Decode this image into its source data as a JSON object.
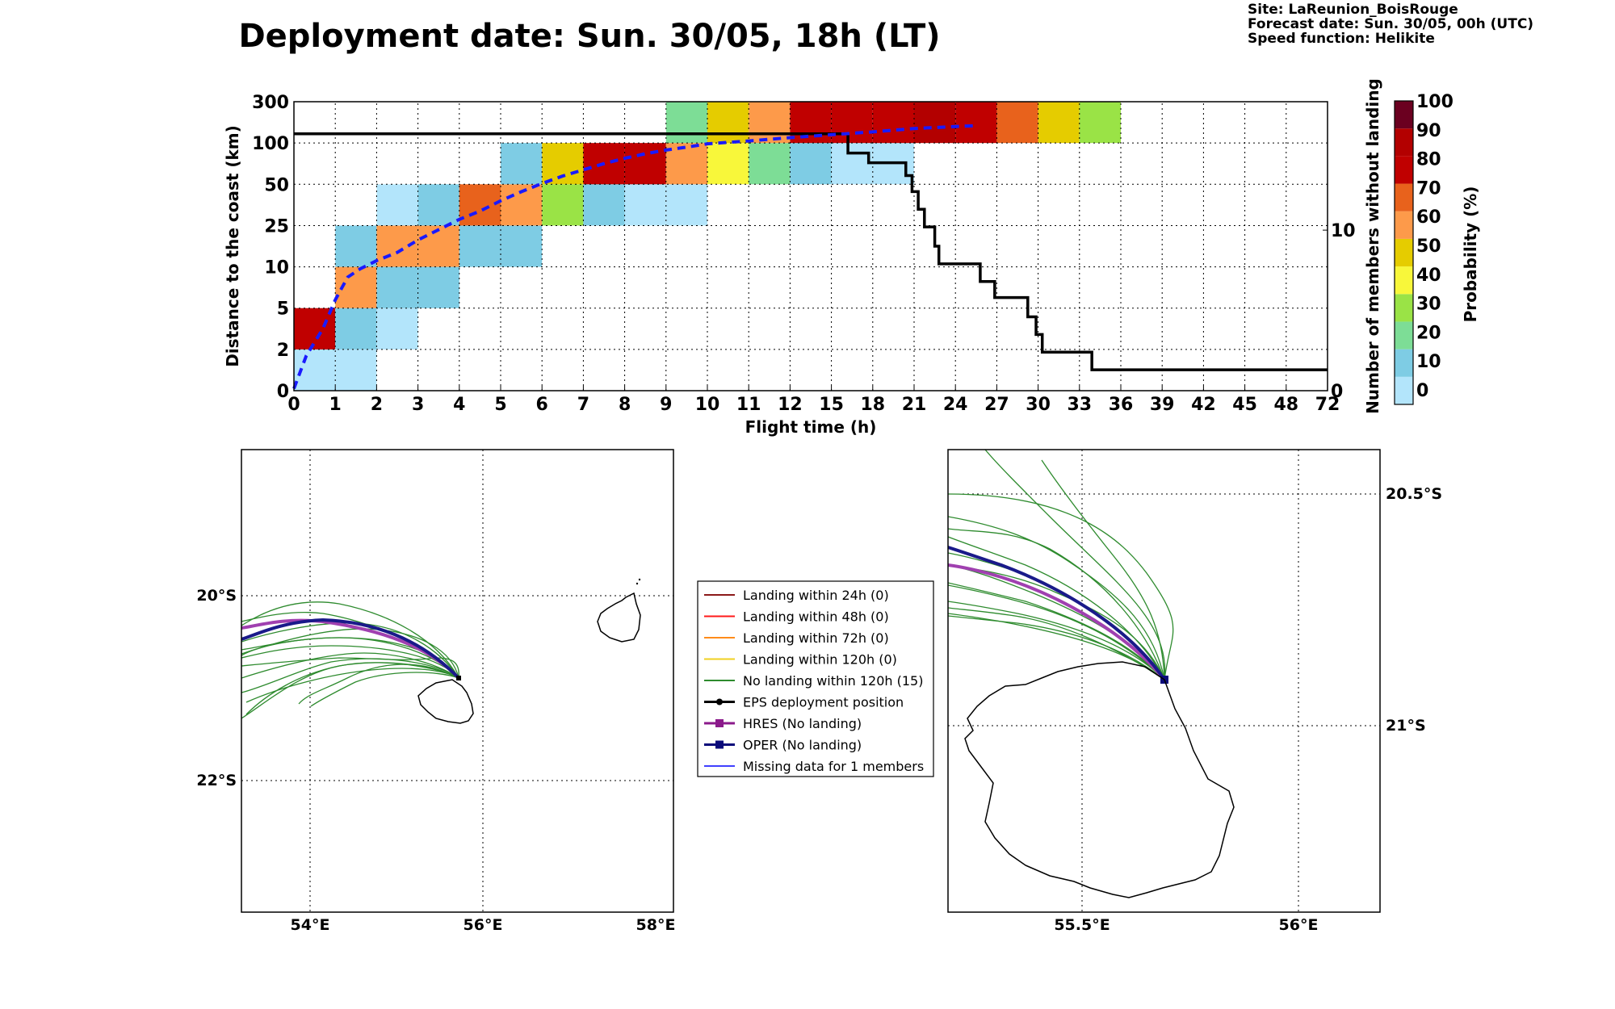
{
  "title": "Deployment date: Sun. 30/05, 18h (LT)",
  "info": {
    "site": "Site: LaReunion_BoisRouge",
    "forecast": "Forecast date: Sun. 30/05, 00h (UTC)",
    "speed": "Speed function: Helikite"
  },
  "chart_data": [
    {
      "type": "heatmap",
      "xlabel": "Flight time (h)",
      "ylabel": "Distance to the coast (km)",
      "y2label": "Number of members without landing",
      "x_ticks": [
        "0",
        "1",
        "2",
        "3",
        "4",
        "5",
        "6",
        "7",
        "8",
        "9",
        "10",
        "11",
        "12",
        "15",
        "18",
        "21",
        "24",
        "27",
        "30",
        "33",
        "36",
        "39",
        "42",
        "45",
        "48",
        "72"
      ],
      "y_ticks": [
        "0",
        "2",
        "5",
        "10",
        "25",
        "50",
        "100",
        "300"
      ],
      "y2_ticks": [
        "0",
        "10"
      ],
      "y2_range": [
        0,
        18
      ],
      "colorbar": {
        "label": "Probability (%)",
        "ticks": [
          "0",
          "10",
          "20",
          "30",
          "40",
          "50",
          "60",
          "70",
          "80",
          "90",
          "100"
        ],
        "colors": [
          "#b3e5fb",
          "#7ecce4",
          "#7ddd96",
          "#9ae346",
          "#f8f73a",
          "#e5cc00",
          "#fd9a4a",
          "#e8621c",
          "#c00000",
          "#b30000",
          "#6b0020"
        ]
      },
      "cells": [
        {
          "x": 0,
          "y": 0,
          "p": 5
        },
        {
          "x": 1,
          "y": 0,
          "p": 5
        },
        {
          "x": 0,
          "y": 1,
          "p": 85
        },
        {
          "x": 1,
          "y": 1,
          "p": 15
        },
        {
          "x": 2,
          "y": 1,
          "p": 5
        },
        {
          "x": 1,
          "y": 2,
          "p": 65
        },
        {
          "x": 2,
          "y": 2,
          "p": 15
        },
        {
          "x": 3,
          "y": 2,
          "p": 15
        },
        {
          "x": 1,
          "y": 3,
          "p": 15
        },
        {
          "x": 2,
          "y": 3,
          "p": 65
        },
        {
          "x": 3,
          "y": 3,
          "p": 65
        },
        {
          "x": 4,
          "y": 3,
          "p": 15
        },
        {
          "x": 5,
          "y": 3,
          "p": 15
        },
        {
          "x": 2,
          "y": 4,
          "p": 5
        },
        {
          "x": 3,
          "y": 4,
          "p": 15
        },
        {
          "x": 4,
          "y": 4,
          "p": 75
        },
        {
          "x": 5,
          "y": 4,
          "p": 65
        },
        {
          "x": 6,
          "y": 4,
          "p": 35
        },
        {
          "x": 7,
          "y": 4,
          "p": 15
        },
        {
          "x": 8,
          "y": 4,
          "p": 5
        },
        {
          "x": 9,
          "y": 4,
          "p": 5
        },
        {
          "x": 5,
          "y": 5,
          "p": 15
        },
        {
          "x": 6,
          "y": 5,
          "p": 55
        },
        {
          "x": 7,
          "y": 5,
          "p": 85
        },
        {
          "x": 8,
          "y": 5,
          "p": 85
        },
        {
          "x": 9,
          "y": 5,
          "p": 65
        },
        {
          "x": 10,
          "y": 5,
          "p": 45
        },
        {
          "x": 11,
          "y": 5,
          "p": 25
        },
        {
          "x": 12,
          "y": 5,
          "p": 15
        },
        {
          "x": 13,
          "y": 5,
          "p": 5
        },
        {
          "x": 14,
          "y": 5,
          "p": 5
        },
        {
          "x": 9,
          "y": 6,
          "p": 25
        },
        {
          "x": 10,
          "y": 6,
          "p": 55
        },
        {
          "x": 11,
          "y": 6,
          "p": 65
        },
        {
          "x": 12,
          "y": 6,
          "p": 85
        },
        {
          "x": 13,
          "y": 6,
          "p": 85
        },
        {
          "x": 14,
          "y": 6,
          "p": 85
        },
        {
          "x": 15,
          "y": 6,
          "p": 95
        },
        {
          "x": 16,
          "y": 6,
          "p": 85
        },
        {
          "x": 17,
          "y": 6,
          "p": 75
        },
        {
          "x": 18,
          "y": 6,
          "p": 55
        },
        {
          "x": 19,
          "y": 6,
          "p": 35
        }
      ],
      "median_line": [
        [
          0,
          0.05
        ],
        [
          0.3,
          0.85
        ],
        [
          0.7,
          1.5
        ],
        [
          1,
          2.2
        ],
        [
          1.3,
          2.75
        ],
        [
          1.6,
          2.95
        ],
        [
          2,
          3.15
        ],
        [
          2.5,
          3.35
        ],
        [
          3,
          3.65
        ],
        [
          3.5,
          3.9
        ],
        [
          4,
          4.15
        ],
        [
          4.5,
          4.35
        ],
        [
          5,
          4.6
        ],
        [
          5.5,
          4.82
        ],
        [
          6,
          5.02
        ],
        [
          6.5,
          5.2
        ],
        [
          7,
          5.35
        ],
        [
          7.5,
          5.5
        ],
        [
          8,
          5.63
        ],
        [
          8.5,
          5.74
        ],
        [
          9,
          5.83
        ],
        [
          9.5,
          5.9
        ],
        [
          10,
          5.98
        ],
        [
          11,
          6.05
        ],
        [
          12,
          6.13
        ],
        [
          13,
          6.2
        ],
        [
          14,
          6.27
        ],
        [
          15,
          6.35
        ],
        [
          16,
          6.4
        ],
        [
          16.5,
          6.42
        ]
      ],
      "members_step": [
        [
          0,
          16
        ],
        [
          13.4,
          16
        ],
        [
          13.4,
          14.8
        ],
        [
          13.9,
          14.8
        ],
        [
          13.9,
          14.2
        ],
        [
          14.8,
          14.2
        ],
        [
          14.8,
          13.4
        ],
        [
          14.95,
          13.4
        ],
        [
          14.95,
          12.4
        ],
        [
          15.1,
          12.4
        ],
        [
          15.1,
          11.3
        ],
        [
          15.25,
          11.3
        ],
        [
          15.25,
          10.2
        ],
        [
          15.5,
          10.2
        ],
        [
          15.5,
          9
        ],
        [
          15.6,
          9
        ],
        [
          15.6,
          7.9
        ],
        [
          16.6,
          7.9
        ],
        [
          16.6,
          6.8
        ],
        [
          16.95,
          6.8
        ],
        [
          16.95,
          5.8
        ],
        [
          17.75,
          5.8
        ],
        [
          17.75,
          4.6
        ],
        [
          17.95,
          4.6
        ],
        [
          17.95,
          3.5
        ],
        [
          18.1,
          3.5
        ],
        [
          18.1,
          2.4
        ],
        [
          19.3,
          2.4
        ],
        [
          19.3,
          1.3
        ],
        [
          25,
          1.3
        ]
      ]
    },
    {
      "type": "map",
      "x_ticks": [
        "54°E",
        "56°E",
        "58°E"
      ],
      "y_ticks": [
        "20°S",
        "22°S"
      ]
    },
    {
      "type": "map",
      "x_ticks": [
        "55.5°E",
        "56°E"
      ],
      "y_ticks": [
        "20.5°S",
        "21°S"
      ]
    }
  ],
  "legend": [
    {
      "label": "Landing within 24h (0)",
      "color": "#8b1a1a",
      "marker": "none"
    },
    {
      "label": "Landing within 48h (0)",
      "color": "#ff1a1a",
      "marker": "none"
    },
    {
      "label": "Landing within 72h (0)",
      "color": "#ff8c1a",
      "marker": "none"
    },
    {
      "label": "Landing within 120h (0)",
      "color": "#f0d020",
      "marker": "none"
    },
    {
      "label": "No landing within 120h (15)",
      "color": "#2e8b2e",
      "marker": "none"
    },
    {
      "label": "EPS deployment position",
      "color": "#000000",
      "marker": "circle"
    },
    {
      "label": "HRES (No landing)",
      "color": "#8b1a8b",
      "marker": "square"
    },
    {
      "label": "OPER (No landing)",
      "color": "#0a0a7a",
      "marker": "square"
    },
    {
      "label": "Missing data for 1 members",
      "color": "#4040ff",
      "marker": "none"
    }
  ]
}
